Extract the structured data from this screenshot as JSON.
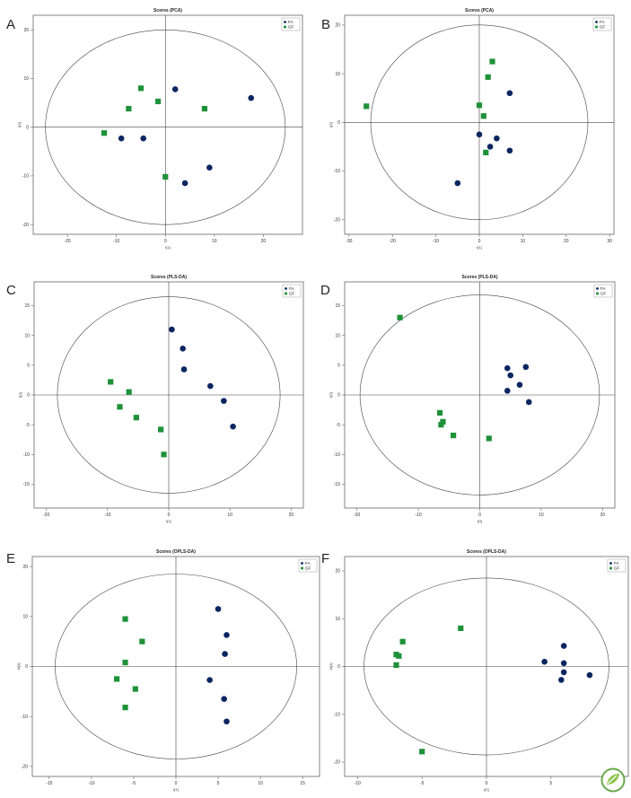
{
  "colors": {
    "FA": "#0b2560",
    "GF": "#1f9139"
  },
  "chart_data": [
    {
      "letter": "A",
      "type": "scatter",
      "title": "Scores (PCA)",
      "xlabel": "t[1]",
      "ylabel": "t[2]",
      "xlim": [
        -27,
        28
      ],
      "ylim": [
        -22,
        23
      ],
      "xticks": [
        -20,
        -10,
        0,
        10,
        20
      ],
      "yticks": [
        -20,
        -10,
        0,
        10,
        20
      ],
      "ellipse": {
        "rx": 24.5,
        "ry": 20
      },
      "legend": "top-right",
      "grid": false,
      "series": [
        {
          "name": "FA",
          "marker": "circle",
          "points": [
            [
              -9,
              -2.3
            ],
            [
              -4.5,
              -2.3
            ],
            [
              2,
              7.8
            ],
            [
              17.5,
              6
            ],
            [
              9,
              -8.3
            ],
            [
              4,
              -11.5
            ]
          ]
        },
        {
          "name": "GF",
          "marker": "square",
          "points": [
            [
              -12.5,
              -1.2
            ],
            [
              -7.5,
              3.8
            ],
            [
              -5,
              8
            ],
            [
              -1.5,
              5.3
            ],
            [
              8,
              3.8
            ],
            [
              0,
              -10.2
            ]
          ]
        }
      ]
    },
    {
      "letter": "B",
      "type": "scatter",
      "title": "Scores (PCA)",
      "xlabel": "t[1]",
      "ylabel": "t[2]",
      "xlim": [
        -31,
        31
      ],
      "ylim": [
        -23,
        22
      ],
      "xticks": [
        -30,
        -20,
        -10,
        0,
        10,
        20,
        30
      ],
      "yticks": [
        -20,
        -10,
        0,
        10,
        20
      ],
      "ellipse": {
        "rx": 25,
        "ry": 20
      },
      "legend": "top-right",
      "grid": false,
      "series": [
        {
          "name": "FA",
          "marker": "circle",
          "points": [
            [
              7,
              6
            ],
            [
              0,
              -2.5
            ],
            [
              4,
              -3.3
            ],
            [
              2.5,
              -5
            ],
            [
              7,
              -5.8
            ],
            [
              -5,
              -12.5
            ]
          ]
        },
        {
          "name": "GF",
          "marker": "square",
          "points": [
            [
              -26,
              3.3
            ],
            [
              3,
              12.5
            ],
            [
              2,
              9.3
            ],
            [
              0,
              3.5
            ],
            [
              1,
              1.3
            ],
            [
              1.5,
              -6.2
            ]
          ]
        }
      ]
    },
    {
      "letter": "C",
      "type": "scatter",
      "title": "Scores (PLS-DA)",
      "xlabel": "t[1]",
      "ylabel": "t[2]",
      "xlim": [
        -22,
        22
      ],
      "ylim": [
        -19,
        19
      ],
      "xticks": [
        -20,
        -10,
        0,
        10,
        20
      ],
      "yticks": [
        -15,
        -10,
        -5,
        0,
        5,
        10,
        15
      ],
      "ellipse": {
        "rx": 18.2,
        "ry": 16.5
      },
      "legend": "top-right",
      "grid": false,
      "series": [
        {
          "name": "FA",
          "marker": "circle",
          "points": [
            [
              0.5,
              11
            ],
            [
              2.3,
              7.8
            ],
            [
              2.5,
              4.3
            ],
            [
              6.8,
              1.5
            ],
            [
              9,
              -1
            ],
            [
              10.5,
              -5.3
            ]
          ]
        },
        {
          "name": "GF",
          "marker": "square",
          "points": [
            [
              -9.5,
              2.2
            ],
            [
              -6.5,
              0.5
            ],
            [
              -8,
              -2
            ],
            [
              -5.3,
              -3.8
            ],
            [
              -1.3,
              -5.8
            ],
            [
              -0.8,
              -10
            ]
          ]
        }
      ]
    },
    {
      "letter": "D",
      "type": "scatter",
      "title": "Scores (PLS-DA)",
      "xlabel": "t[1]",
      "ylabel": "t[2]",
      "xlim": [
        -22,
        22
      ],
      "ylim": [
        -19,
        19
      ],
      "xticks": [
        -20,
        -10,
        0,
        10,
        20
      ],
      "yticks": [
        -15,
        -10,
        -5,
        0,
        5,
        10,
        15
      ],
      "ellipse": {
        "rx": 19.5,
        "ry": 16.8
      },
      "legend": "top-right",
      "grid": false,
      "series": [
        {
          "name": "FA",
          "marker": "circle",
          "points": [
            [
              4.5,
              4.5
            ],
            [
              7.5,
              4.7
            ],
            [
              5,
              3.3
            ],
            [
              6.5,
              1.7
            ],
            [
              4.5,
              0.7
            ],
            [
              8,
              -1.2
            ]
          ]
        },
        {
          "name": "GF",
          "marker": "square",
          "points": [
            [
              -13,
              13
            ],
            [
              -6.5,
              -3
            ],
            [
              -6,
              -4.5
            ],
            [
              -6.3,
              -5
            ],
            [
              -4.3,
              -6.8
            ],
            [
              1.5,
              -7.3
            ]
          ]
        }
      ]
    },
    {
      "letter": "E",
      "type": "scatter",
      "title": "Scores (OPLS-DA)",
      "xlabel": "t[1]",
      "ylabel": "to[1]",
      "xlim": [
        -17,
        17
      ],
      "ylim": [
        -22,
        22
      ],
      "xticks": [
        -15,
        -10,
        -5,
        0,
        5,
        10,
        15
      ],
      "yticks": [
        -20,
        -10,
        0,
        10,
        20
      ],
      "ellipse": {
        "rx": 14.3,
        "ry": 18.5
      },
      "legend": "top-right",
      "grid": false,
      "series": [
        {
          "name": "FA",
          "marker": "circle",
          "points": [
            [
              5,
              11.5
            ],
            [
              6,
              6.3
            ],
            [
              5.8,
              2.5
            ],
            [
              4,
              -2.7
            ],
            [
              5.7,
              -6.5
            ],
            [
              6,
              -11
            ]
          ]
        },
        {
          "name": "GF",
          "marker": "square",
          "points": [
            [
              -6,
              9.5
            ],
            [
              -4,
              5
            ],
            [
              -6,
              0.8
            ],
            [
              -7,
              -2.5
            ],
            [
              -4.8,
              -4.5
            ],
            [
              -6,
              -8.2
            ]
          ]
        }
      ]
    },
    {
      "letter": "F",
      "type": "scatter",
      "title": "Scores (OPLS-DA)",
      "xlabel": "t[1]",
      "ylabel": "to[1]",
      "xlim": [
        -11,
        11
      ],
      "ylim": [
        -23,
        23
      ],
      "xticks": [
        -10,
        -5,
        0,
        5,
        10
      ],
      "yticks": [
        -20,
        -10,
        0,
        10,
        20
      ],
      "ellipse": {
        "rx": 9.5,
        "ry": 18.5
      },
      "legend": "top-right",
      "grid": false,
      "series": [
        {
          "name": "FA",
          "marker": "circle",
          "points": [
            [
              6,
              4.3
            ],
            [
              4.5,
              1
            ],
            [
              6,
              0.7
            ],
            [
              8,
              -1.8
            ],
            [
              6,
              -1.2
            ],
            [
              5.8,
              -2.8
            ]
          ]
        },
        {
          "name": "GF",
          "marker": "square",
          "points": [
            [
              -2,
              8
            ],
            [
              -6.5,
              5.2
            ],
            [
              -7,
              2.5
            ],
            [
              -6.8,
              2.2
            ],
            [
              -7,
              0.3
            ],
            [
              -5,
              -17.8
            ]
          ]
        }
      ]
    }
  ]
}
